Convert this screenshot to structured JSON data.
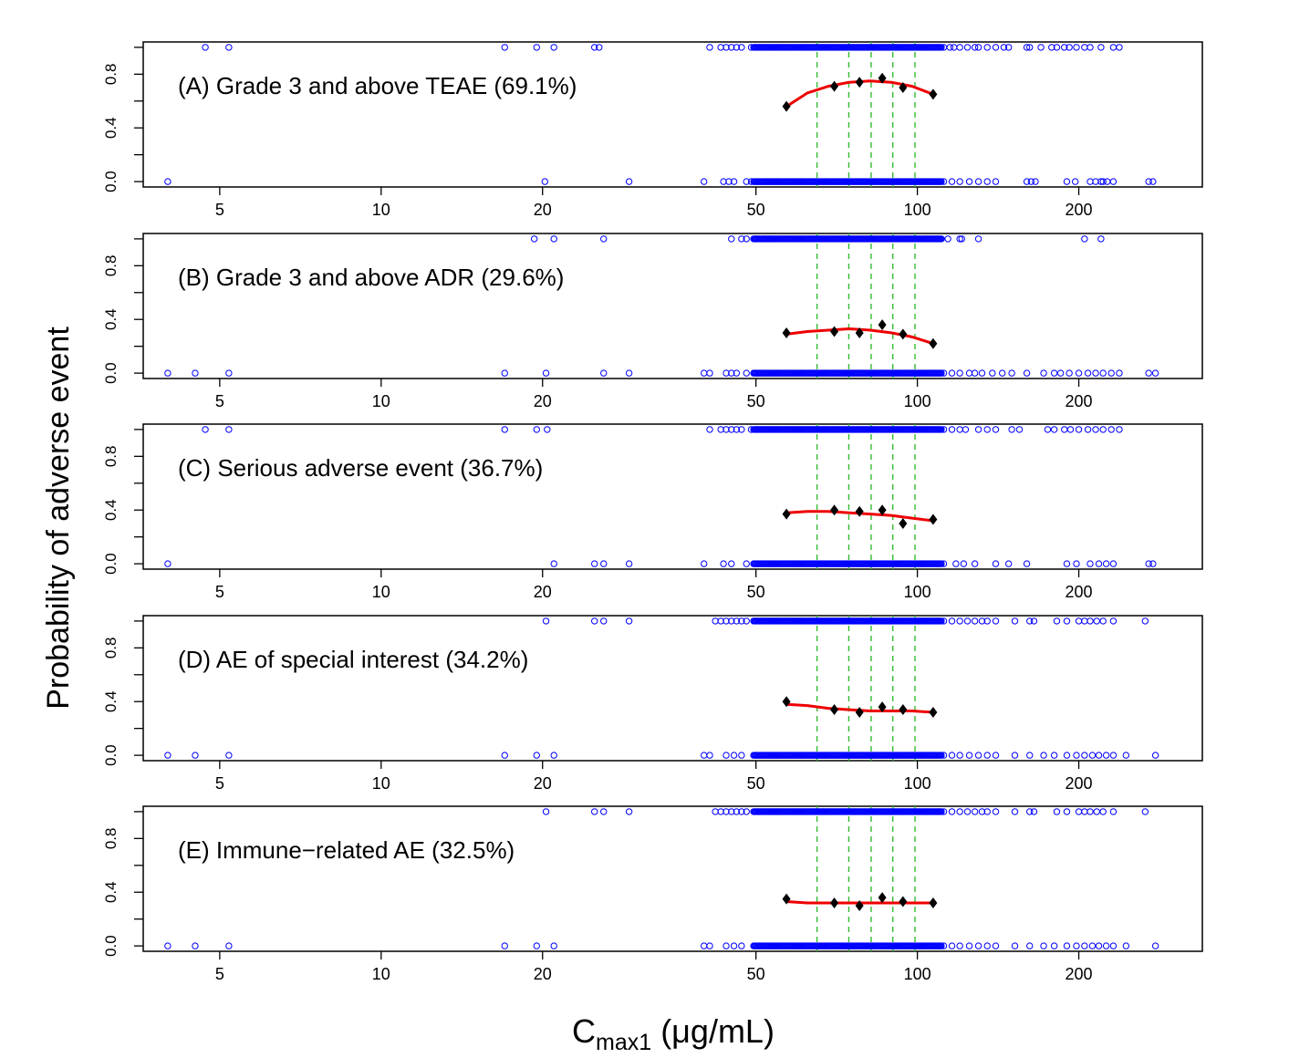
{
  "chart_data": {
    "type": "scatter",
    "ylabel": "Probability of adverse event",
    "xlabel": {
      "main": "C",
      "sub": "max1",
      "unit": " (μg/mL)"
    },
    "x_scale": "log",
    "xlim": [
      3.6,
      340
    ],
    "ylim": [
      -0.04,
      1.04
    ],
    "x_ticks": [
      5,
      10,
      20,
      50,
      100,
      200
    ],
    "x_tick_labels": [
      "5",
      "10",
      "20",
      "50",
      "100",
      "200"
    ],
    "y_ticks": [
      0,
      0.2,
      0.4,
      0.6,
      0.8,
      1.0
    ],
    "y_tick_labels": [
      "0.0",
      "",
      "0.4",
      "",
      "0.8",
      ""
    ],
    "quantile_lines_x": [
      65,
      74.5,
      82,
      90,
      99
    ],
    "colors": {
      "observed": "#0000ff",
      "curve": "#ee0000",
      "binned": "#000000",
      "quantile": "#33bb33"
    },
    "panels": [
      {
        "label": "(A) Grade 3 and above TEAE (69.1%)",
        "binned_x": [
          57,
          70,
          78,
          86,
          94,
          107
        ],
        "binned_y": [
          0.56,
          0.71,
          0.74,
          0.77,
          0.7,
          0.65
        ],
        "curve_y": [
          0.56,
          0.66,
          0.71,
          0.74,
          0.75,
          0.74,
          0.71,
          0.65
        ],
        "events_x": [
          4.7,
          5.2,
          17,
          19.5,
          21,
          25,
          25.5,
          41,
          43,
          44,
          45,
          46,
          47,
          49,
          112,
          115,
          117,
          120,
          124,
          128,
          130,
          135,
          140,
          145,
          148,
          160,
          162,
          170,
          178,
          182,
          188,
          192,
          198,
          205,
          210,
          220,
          232,
          238
        ],
        "nonevents_x": [
          4,
          20.2,
          29,
          40,
          43.5,
          44.5,
          45.5,
          48,
          49,
          112,
          116,
          120,
          125,
          130,
          135,
          140,
          160,
          163,
          166,
          190,
          197,
          210,
          215,
          220,
          222,
          226,
          232,
          270,
          275
        ]
      },
      {
        "label": "(B) Grade 3 and above ADR (29.6%)",
        "binned_x": [
          57,
          70,
          78,
          86,
          94,
          107
        ],
        "binned_y": [
          0.3,
          0.31,
          0.3,
          0.36,
          0.29,
          0.22
        ],
        "curve_y": [
          0.29,
          0.31,
          0.32,
          0.33,
          0.32,
          0.3,
          0.27,
          0.22
        ],
        "events_x": [
          19.3,
          21,
          26,
          45,
          47,
          48,
          50,
          52,
          53,
          109,
          114,
          120,
          121,
          130,
          205,
          220
        ],
        "nonevents_x": [
          4,
          4.5,
          5.2,
          17,
          20.3,
          26,
          29,
          40,
          41,
          44,
          45,
          46,
          48,
          112,
          116,
          120,
          125,
          128,
          132,
          138,
          144,
          150,
          160,
          172,
          180,
          185,
          192,
          200,
          208,
          215,
          222,
          230,
          238,
          270,
          278
        ]
      },
      {
        "label": "(C) Serious adverse event (36.7%)",
        "binned_x": [
          57,
          70,
          78,
          86,
          94,
          107
        ],
        "binned_y": [
          0.37,
          0.4,
          0.39,
          0.4,
          0.3,
          0.33
        ],
        "curve_y": [
          0.38,
          0.39,
          0.39,
          0.38,
          0.37,
          0.36,
          0.34,
          0.32
        ],
        "events_x": [
          4.7,
          5.2,
          17,
          19.5,
          20.4,
          41,
          43,
          44,
          45,
          46,
          47,
          49,
          112,
          116,
          120,
          123,
          130,
          135,
          140,
          150,
          155,
          175,
          180,
          188,
          193,
          200,
          208,
          215,
          222,
          230,
          238
        ],
        "nonevents_x": [
          4,
          21,
          25,
          26,
          29,
          40,
          43.5,
          45,
          48,
          112,
          118,
          122,
          128,
          140,
          148,
          160,
          190,
          198,
          210,
          218,
          225,
          232,
          270,
          275
        ]
      },
      {
        "label": "(D) AE of special interest (34.2%)",
        "binned_x": [
          57,
          70,
          78,
          86,
          94,
          107
        ],
        "binned_y": [
          0.4,
          0.34,
          0.32,
          0.36,
          0.34,
          0.32
        ],
        "curve_y": [
          0.38,
          0.37,
          0.35,
          0.34,
          0.33,
          0.33,
          0.33,
          0.32
        ],
        "events_x": [
          20.3,
          25,
          26,
          29,
          42,
          43,
          44,
          45,
          46,
          47,
          48,
          112,
          116,
          120,
          124,
          128,
          132,
          135,
          140,
          152,
          162,
          165,
          182,
          190,
          200,
          205,
          210,
          216,
          222,
          232,
          266
        ],
        "nonevents_x": [
          4,
          4.5,
          5.2,
          17,
          19.5,
          21,
          40,
          41,
          44,
          45.5,
          47,
          112,
          116,
          120,
          125,
          130,
          135,
          140,
          152,
          162,
          172,
          180,
          190,
          198,
          205,
          212,
          218,
          225,
          232,
          245,
          278
        ]
      },
      {
        "label": "(E) Immune−related AE (32.5%)",
        "binned_x": [
          57,
          70,
          78,
          86,
          94,
          107
        ],
        "binned_y": [
          0.35,
          0.32,
          0.3,
          0.36,
          0.33,
          0.32
        ],
        "curve_y": [
          0.33,
          0.32,
          0.32,
          0.32,
          0.32,
          0.32,
          0.32,
          0.32
        ],
        "events_x": [
          20.3,
          25,
          26,
          29,
          42,
          43,
          44,
          45,
          46,
          47,
          48,
          112,
          116,
          120,
          124,
          128,
          132,
          135,
          140,
          152,
          162,
          165,
          182,
          190,
          200,
          205,
          210,
          216,
          222,
          232,
          266
        ],
        "nonevents_x": [
          4,
          4.5,
          5.2,
          17,
          19.5,
          21,
          40,
          41,
          44,
          45.5,
          47,
          112,
          116,
          120,
          125,
          130,
          135,
          140,
          152,
          162,
          172,
          180,
          190,
          198,
          205,
          212,
          218,
          225,
          232,
          245,
          278
        ]
      }
    ]
  }
}
